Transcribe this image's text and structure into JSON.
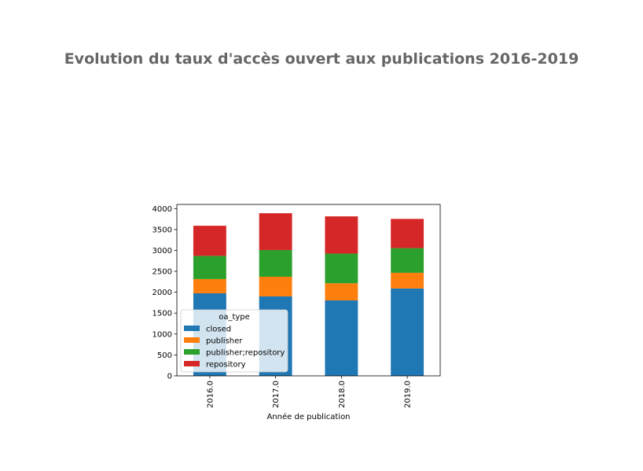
{
  "chart_data": {
    "type": "bar",
    "stacked": true,
    "title": "Evolution du taux d'accès ouvert aux publications 2016-2019",
    "xlabel": "Année de publication",
    "ylabel": "",
    "categories": [
      "2016.0",
      "2017.0",
      "2018.0",
      "2019.0"
    ],
    "ylim": [
      0,
      4100
    ],
    "yticks": [
      0,
      500,
      1000,
      1500,
      2000,
      2500,
      3000,
      3500,
      4000
    ],
    "grid": false,
    "legend": {
      "title": "oa_type",
      "position": "lower-left"
    },
    "series": [
      {
        "name": "closed",
        "color": "#1f77b4",
        "values": [
          1975,
          1900,
          1805,
          2090
        ]
      },
      {
        "name": "publisher",
        "color": "#ff7f0e",
        "values": [
          340,
          470,
          410,
          375
        ]
      },
      {
        "name": "publisher;repository",
        "color": "#2ca02c",
        "values": [
          555,
          640,
          710,
          590
        ]
      },
      {
        "name": "repository",
        "color": "#d62728",
        "values": [
          720,
          880,
          890,
          700
        ]
      }
    ]
  }
}
